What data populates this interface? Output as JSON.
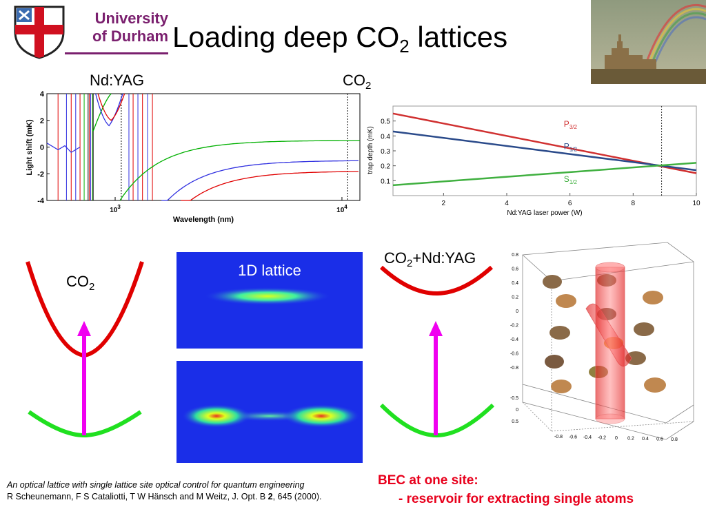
{
  "header": {
    "logo_line1": "University",
    "logo_line2": "of Durham",
    "title_main": "Loading deep CO",
    "title_sub": "2",
    "title_end": " lattices"
  },
  "labels": {
    "ndyag": "Nd:YAG",
    "co2_top_main": "CO",
    "co2_top_sub": "2",
    "co2_left_main": "CO",
    "co2_left_sub": "2",
    "co2_ndyag_main": "CO",
    "co2_ndyag_sub": "2",
    "co2_ndyag_end": "+Nd:YAG",
    "lattice": "1D lattice"
  },
  "citation": {
    "line1": "An optical lattice with single lattice site optical control for quantum engineering",
    "line2_pre": "R Scheunemann, F S Cataliotti, T W Hänsch and M Weitz, J. Opt. B ",
    "line2_bold": "2",
    "line2_post": ", 645 (2000)."
  },
  "bec": {
    "line1": "BEC at one site:",
    "line2": "- reservoir for extracting single atoms"
  },
  "chart_data": [
    {
      "type": "line",
      "title": "",
      "xlabel": "Wavelength (nm)",
      "ylabel": "Light shift (mK)",
      "xscale": "log",
      "xlim": [
        500,
        12000
      ],
      "ylim": [
        -4,
        4
      ],
      "yticks": [
        "4",
        "2",
        "0",
        "-2",
        "-4"
      ],
      "xticks": [
        "10^3",
        "10^4"
      ],
      "markers": [
        1064,
        10600
      ],
      "series": [
        {
          "color": "#00b000",
          "asymptote": 0.5
        },
        {
          "color": "#e00000",
          "asymptote": -1.8
        },
        {
          "color": "#3030e0",
          "asymptote": -1.0
        }
      ]
    },
    {
      "type": "line",
      "title": "",
      "xlabel": "Nd:YAG laser power (W)",
      "ylabel": "trap depth (mK)",
      "xlim": [
        0.4,
        10
      ],
      "ylim": [
        0,
        0.6
      ],
      "xticks": [
        2,
        4,
        6,
        8,
        10
      ],
      "yticks": [
        0.1,
        0.2,
        0.3,
        0.4,
        0.5
      ],
      "marker_x": 8.9,
      "series": [
        {
          "name_main": "P",
          "name_sub": "3/2",
          "color": "#d03030",
          "points": [
            [
              0.4,
              0.55
            ],
            [
              10,
              0.15
            ]
          ]
        },
        {
          "name_main": "P",
          "name_sub": "1/2",
          "color": "#2a4a8a",
          "points": [
            [
              0.4,
              0.43
            ],
            [
              10,
              0.17
            ]
          ]
        },
        {
          "name_main": "S",
          "name_sub": "1/2",
          "color": "#40b040",
          "points": [
            [
              0.4,
              0.07
            ],
            [
              10,
              0.22
            ]
          ]
        }
      ]
    },
    {
      "type": "scatter",
      "title": "",
      "yticks": [
        "0.8",
        "0.6",
        "0.4",
        "0.2",
        "0",
        "-0.2",
        "-0.4",
        "-0.6",
        "-0.8"
      ],
      "xticks": [
        "-0.8",
        "-0.6",
        "-0.4",
        "-0.2",
        "0",
        "0.2",
        "0.4",
        "0.6",
        "0.8"
      ],
      "zticks": [
        "-0.5",
        "0",
        "0.5"
      ]
    }
  ]
}
